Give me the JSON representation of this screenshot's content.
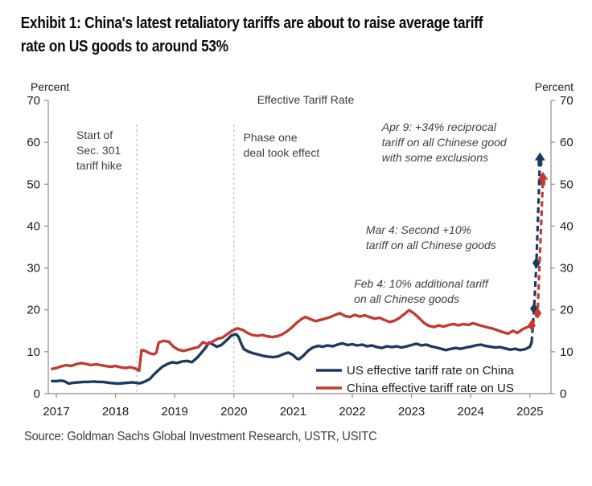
{
  "title": {
    "line1": "Exhibit 1: China's latest retaliatory tariffs are about to raise average tariff",
    "line2": "rate on US goods to around 53%"
  },
  "source": "Source: Goldman Sachs Global Investment Research, USTR, USITC",
  "chart_data": {
    "type": "line",
    "title": "Effective Tariff Rate",
    "y_axis_label_left": "Percent",
    "y_axis_label_right": "Percent",
    "ylim": [
      0,
      70
    ],
    "y_ticks": [
      0,
      10,
      20,
      30,
      40,
      50,
      60,
      70
    ],
    "x_ticks": [
      2017,
      2018,
      2019,
      2020,
      2021,
      2022,
      2023,
      2024,
      2025
    ],
    "x_range": [
      2016.93,
      2025.36
    ],
    "grid": "off",
    "legend_position": "inside-bottom-right",
    "event_lines": [
      {
        "x": 2018.36,
        "label_x": 2017.34,
        "label_y": 60.8,
        "lines": [
          "Start of",
          "Sec. 301",
          "tariff hike"
        ]
      },
      {
        "x": 2020.0,
        "label_x": 2020.16,
        "label_y": 60.2,
        "lines": [
          "Phase one",
          "deal took effect"
        ]
      }
    ],
    "annotations": [
      {
        "x": 2022.5,
        "y": 62.7,
        "italic": true,
        "lines": [
          "Apr 9: +34% reciprocal",
          "tariff on all Chinese good",
          "with some exclusions"
        ]
      },
      {
        "x": 2022.23,
        "y": 38.2,
        "italic": true,
        "lines": [
          "Mar 4: Second +10%",
          "tariff on all Chinese goods"
        ]
      },
      {
        "x": 2022.03,
        "y": 25.3,
        "italic": true,
        "lines": [
          "Feb 4: 10% additional tariff",
          "on all Chinese goods"
        ]
      }
    ],
    "series": [
      {
        "id": "us",
        "name": "US effective tariff rate on China",
        "color": "#1B3A5F",
        "solid": [
          [
            2016.93,
            3.0
          ],
          [
            2017.0,
            3.0
          ],
          [
            2017.08,
            3.1
          ],
          [
            2017.13,
            3.0
          ],
          [
            2017.21,
            2.4
          ],
          [
            2017.29,
            2.6
          ],
          [
            2017.38,
            2.7
          ],
          [
            2017.46,
            2.8
          ],
          [
            2017.54,
            2.8
          ],
          [
            2017.63,
            2.9
          ],
          [
            2017.71,
            2.8
          ],
          [
            2017.79,
            2.8
          ],
          [
            2017.88,
            2.6
          ],
          [
            2017.96,
            2.5
          ],
          [
            2018.04,
            2.4
          ],
          [
            2018.13,
            2.5
          ],
          [
            2018.21,
            2.6
          ],
          [
            2018.29,
            2.7
          ],
          [
            2018.38,
            2.5
          ],
          [
            2018.42,
            2.5
          ],
          [
            2018.5,
            2.9
          ],
          [
            2018.58,
            3.5
          ],
          [
            2018.63,
            4.3
          ],
          [
            2018.71,
            5.4
          ],
          [
            2018.79,
            6.4
          ],
          [
            2018.88,
            7.1
          ],
          [
            2018.96,
            7.5
          ],
          [
            2019.04,
            7.3
          ],
          [
            2019.13,
            7.7
          ],
          [
            2019.21,
            7.8
          ],
          [
            2019.29,
            7.5
          ],
          [
            2019.38,
            8.6
          ],
          [
            2019.46,
            9.9
          ],
          [
            2019.54,
            11.3
          ],
          [
            2019.58,
            12.2
          ],
          [
            2019.65,
            11.7
          ],
          [
            2019.71,
            11.2
          ],
          [
            2019.79,
            11.6
          ],
          [
            2019.88,
            12.8
          ],
          [
            2019.96,
            13.9
          ],
          [
            2020.04,
            14.2
          ],
          [
            2020.08,
            13.5
          ],
          [
            2020.13,
            11.7
          ],
          [
            2020.17,
            10.6
          ],
          [
            2020.25,
            10.0
          ],
          [
            2020.33,
            9.6
          ],
          [
            2020.42,
            9.3
          ],
          [
            2020.5,
            9.0
          ],
          [
            2020.58,
            8.8
          ],
          [
            2020.67,
            8.7
          ],
          [
            2020.75,
            8.9
          ],
          [
            2020.83,
            9.4
          ],
          [
            2020.92,
            9.8
          ],
          [
            2021.0,
            9.2
          ],
          [
            2021.06,
            8.4
          ],
          [
            2021.1,
            8.2
          ],
          [
            2021.17,
            9.0
          ],
          [
            2021.25,
            10.2
          ],
          [
            2021.33,
            11.0
          ],
          [
            2021.42,
            11.4
          ],
          [
            2021.5,
            11.2
          ],
          [
            2021.58,
            11.5
          ],
          [
            2021.67,
            11.3
          ],
          [
            2021.75,
            11.7
          ],
          [
            2021.83,
            12.0
          ],
          [
            2021.92,
            11.6
          ],
          [
            2022.0,
            11.8
          ],
          [
            2022.08,
            11.5
          ],
          [
            2022.17,
            11.7
          ],
          [
            2022.25,
            11.3
          ],
          [
            2022.33,
            11.5
          ],
          [
            2022.42,
            11.1
          ],
          [
            2022.5,
            10.9
          ],
          [
            2022.58,
            11.3
          ],
          [
            2022.67,
            11.1
          ],
          [
            2022.75,
            11.3
          ],
          [
            2022.83,
            11.0
          ],
          [
            2022.92,
            11.3
          ],
          [
            2023.0,
            11.6
          ],
          [
            2023.08,
            11.9
          ],
          [
            2023.17,
            11.5
          ],
          [
            2023.25,
            11.7
          ],
          [
            2023.33,
            11.3
          ],
          [
            2023.42,
            11.0
          ],
          [
            2023.5,
            10.7
          ],
          [
            2023.58,
            10.4
          ],
          [
            2023.67,
            10.7
          ],
          [
            2023.75,
            10.9
          ],
          [
            2023.83,
            10.7
          ],
          [
            2023.92,
            11.0
          ],
          [
            2024.0,
            11.2
          ],
          [
            2024.08,
            11.5
          ],
          [
            2024.17,
            11.7
          ],
          [
            2024.25,
            11.4
          ],
          [
            2024.33,
            11.2
          ],
          [
            2024.42,
            11.0
          ],
          [
            2024.5,
            11.1
          ],
          [
            2024.58,
            10.8
          ],
          [
            2024.67,
            10.5
          ],
          [
            2024.75,
            10.7
          ],
          [
            2024.83,
            10.4
          ],
          [
            2024.92,
            10.6
          ],
          [
            2025.0,
            11.2
          ],
          [
            2025.03,
            12.3
          ]
        ],
        "dashed": [
          [
            2025.03,
            12.3
          ],
          [
            2025.07,
            20.3
          ],
          [
            2025.11,
            31.2
          ],
          [
            2025.17,
            55.8
          ]
        ],
        "diamond_markers": [
          [
            2025.07,
            20.3
          ],
          [
            2025.11,
            31.2
          ]
        ],
        "arrow_marker": {
          "x": 2025.17,
          "y": 57.6
        }
      },
      {
        "id": "china",
        "name": "China effective tariff rate on US",
        "color": "#C23B32",
        "solid": [
          [
            2016.93,
            5.9
          ],
          [
            2017.0,
            6.1
          ],
          [
            2017.08,
            6.5
          ],
          [
            2017.17,
            6.8
          ],
          [
            2017.25,
            6.6
          ],
          [
            2017.33,
            7.0
          ],
          [
            2017.42,
            7.3
          ],
          [
            2017.5,
            7.1
          ],
          [
            2017.58,
            6.8
          ],
          [
            2017.67,
            7.0
          ],
          [
            2017.75,
            6.8
          ],
          [
            2017.83,
            6.6
          ],
          [
            2017.92,
            6.4
          ],
          [
            2018.0,
            6.6
          ],
          [
            2018.08,
            6.3
          ],
          [
            2018.17,
            6.1
          ],
          [
            2018.25,
            6.3
          ],
          [
            2018.33,
            6.0
          ],
          [
            2018.4,
            5.5
          ],
          [
            2018.44,
            10.4
          ],
          [
            2018.5,
            10.2
          ],
          [
            2018.58,
            9.6
          ],
          [
            2018.65,
            9.4
          ],
          [
            2018.69,
            9.8
          ],
          [
            2018.73,
            12.2
          ],
          [
            2018.81,
            12.6
          ],
          [
            2018.9,
            12.4
          ],
          [
            2018.98,
            11.2
          ],
          [
            2019.06,
            10.5
          ],
          [
            2019.15,
            10.2
          ],
          [
            2019.23,
            10.5
          ],
          [
            2019.31,
            10.8
          ],
          [
            2019.4,
            11.1
          ],
          [
            2019.48,
            12.3
          ],
          [
            2019.56,
            11.8
          ],
          [
            2019.65,
            12.5
          ],
          [
            2019.73,
            13.1
          ],
          [
            2019.81,
            13.4
          ],
          [
            2019.9,
            14.3
          ],
          [
            2019.98,
            15.1
          ],
          [
            2020.06,
            15.6
          ],
          [
            2020.15,
            15.2
          ],
          [
            2020.23,
            14.5
          ],
          [
            2020.31,
            14.0
          ],
          [
            2020.4,
            13.8
          ],
          [
            2020.48,
            14.0
          ],
          [
            2020.56,
            13.7
          ],
          [
            2020.65,
            13.5
          ],
          [
            2020.73,
            13.7
          ],
          [
            2020.81,
            14.1
          ],
          [
            2020.9,
            14.9
          ],
          [
            2020.98,
            15.8
          ],
          [
            2021.06,
            16.9
          ],
          [
            2021.15,
            17.9
          ],
          [
            2021.21,
            18.3
          ],
          [
            2021.29,
            17.8
          ],
          [
            2021.38,
            17.3
          ],
          [
            2021.46,
            17.6
          ],
          [
            2021.54,
            17.9
          ],
          [
            2021.63,
            18.3
          ],
          [
            2021.71,
            18.8
          ],
          [
            2021.79,
            19.2
          ],
          [
            2021.88,
            18.5
          ],
          [
            2021.96,
            18.3
          ],
          [
            2022.04,
            18.8
          ],
          [
            2022.13,
            18.4
          ],
          [
            2022.21,
            18.7
          ],
          [
            2022.29,
            18.3
          ],
          [
            2022.38,
            17.9
          ],
          [
            2022.46,
            18.1
          ],
          [
            2022.54,
            17.6
          ],
          [
            2022.63,
            17.1
          ],
          [
            2022.71,
            17.4
          ],
          [
            2022.79,
            18.0
          ],
          [
            2022.88,
            19.0
          ],
          [
            2022.96,
            19.9
          ],
          [
            2023.04,
            19.2
          ],
          [
            2023.13,
            18.0
          ],
          [
            2023.21,
            16.9
          ],
          [
            2023.29,
            16.2
          ],
          [
            2023.38,
            15.9
          ],
          [
            2023.46,
            16.3
          ],
          [
            2023.54,
            16.0
          ],
          [
            2023.63,
            16.4
          ],
          [
            2023.71,
            16.6
          ],
          [
            2023.79,
            16.3
          ],
          [
            2023.88,
            16.6
          ],
          [
            2023.96,
            16.4
          ],
          [
            2024.04,
            16.8
          ],
          [
            2024.13,
            16.4
          ],
          [
            2024.21,
            16.1
          ],
          [
            2024.29,
            15.8
          ],
          [
            2024.38,
            15.5
          ],
          [
            2024.46,
            15.1
          ],
          [
            2024.54,
            14.7
          ],
          [
            2024.63,
            14.3
          ],
          [
            2024.71,
            15.0
          ],
          [
            2024.79,
            14.5
          ],
          [
            2024.88,
            15.4
          ],
          [
            2024.96,
            15.9
          ],
          [
            2025.03,
            16.3
          ]
        ],
        "dashed": [
          [
            2025.03,
            16.3
          ],
          [
            2025.13,
            19.2
          ],
          [
            2025.22,
            51.2
          ]
        ],
        "diamond_markers": [
          [
            2025.03,
            16.3
          ],
          [
            2025.13,
            19.2
          ]
        ],
        "arrow_marker": {
          "x": 2025.22,
          "y": 53.0
        }
      }
    ]
  }
}
